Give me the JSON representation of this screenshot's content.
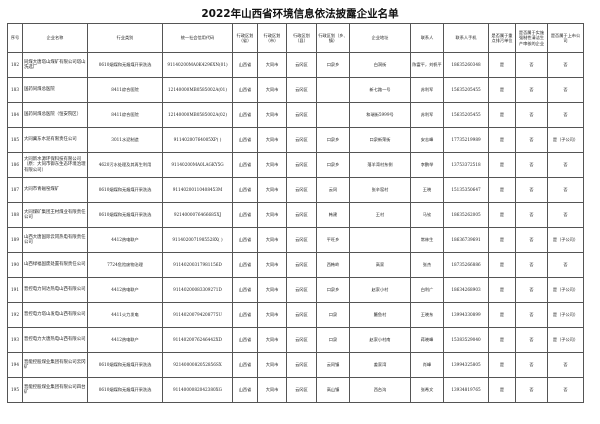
{
  "title": "2022年山西省环境信息依法披露企业名单",
  "headers": [
    "序号",
    "企业名称",
    "行业类别",
    "统一社会信用代码",
    "行政区划（省）",
    "行政区划（市）",
    "行政区划（县）",
    "行政区划（乡、镇）",
    "企业地址",
    "联系人",
    "联系人手机",
    "是否属于重点排污单位",
    "是否属于实施强制性清洁生产审核的企业",
    "是否属于上市公司"
  ],
  "rows": [
    {
      "no": "182",
      "name": "同煤大唐塔山煤矿有限公司塔山洗选厂",
      "industry": "0610烟煤和无烟煤开采洗选",
      "code": "91140200MA0K4296XN(01)",
      "prov": "山西省",
      "city": "大同市",
      "county": "云冈区",
      "town": "口泉乡",
      "address": "白洞街",
      "contact": "陈富平，刘帆平",
      "phone": "18635260348",
      "key": "是",
      "clean": "否",
      "listed": "否"
    },
    {
      "no": "183",
      "name": "国药同煤总医院",
      "industry": "8411综合医院",
      "code": "12140000MB0585002A(01)",
      "prov": "山西省",
      "city": "大同市",
      "county": "云冈区",
      "town": "",
      "address": "新七路一号",
      "contact": "苏利军",
      "phone": "15635205455",
      "key": "是",
      "clean": "否",
      "listed": "否"
    },
    {
      "no": "184",
      "name": "国药同煤总医院（恒安院区）",
      "industry": "8411综合医院",
      "code": "12140000MB0585002A(02)",
      "prov": "山西省",
      "city": "大同市",
      "county": "云冈区",
      "town": "",
      "address": "和瑞街5999号",
      "contact": "苏利军",
      "phone": "15635205455",
      "key": "是",
      "clean": "否",
      "listed": "否"
    },
    {
      "no": "185",
      "name": "大同冀东水泥有限责任公司",
      "industry": "3011水泥制造",
      "code": "91140200764005XP(  )",
      "prov": "山西省",
      "city": "大同市",
      "county": "云冈区",
      "town": "口泉乡",
      "address": "口泉新荣街",
      "contact": "安志峰",
      "phone": "17735219989",
      "key": "是",
      "clean": "否",
      "listed": "是（子公司）"
    },
    {
      "no": "186",
      "name": "大同新水源环保科技有限公司（原：大同市御东生态环境治理有限公司）",
      "industry": "4620污水处理及其再生利用",
      "code": "91140200MA0LAGKY5G",
      "prov": "山西省",
      "city": "大同市",
      "county": "云冈区",
      "town": "口泉乡",
      "address": "落羊湾村东侧",
      "contact": "李鹏举",
      "phone": "13753372518",
      "key": "是",
      "clean": "否",
      "listed": "否"
    },
    {
      "no": "187",
      "name": "大同市青磁窑煤矿",
      "industry": "0610烟煤和无烟煤开采洗选",
      "code": "91140200110408453M",
      "prov": "山西省",
      "city": "大同市",
      "county": "云冈区",
      "town": "云冈",
      "address": "张辛窑村",
      "contact": "王晓",
      "phone": "15135350647",
      "key": "是",
      "clean": "否",
      "listed": "否"
    },
    {
      "no": "188",
      "name": "大同煤矿集团王村煤业有限责任公司",
      "industry": "0610烟煤和无烟煤开采洗选",
      "code": "9214000076466685XJ",
      "prov": "山西省",
      "city": "大同市",
      "county": "云冈区",
      "town": "韩建",
      "address": "王村",
      "contact": "马钦",
      "phone": "18635262005",
      "key": "是",
      "clean": "否",
      "listed": "否"
    },
    {
      "no": "189",
      "name": "山西大唐国际云冈热电有限责任公司",
      "industry": "4412热电联产",
      "code": "9114020071985528X(  )",
      "prov": "山西省",
      "city": "大同市",
      "county": "云冈区",
      "town": "平旺乡",
      "address": "",
      "contact": "常林生",
      "phone": "18636739691",
      "key": "是",
      "clean": "否",
      "listed": "是（子公司）"
    },
    {
      "no": "190",
      "name": "山西绿福固废处置有限责任公司",
      "industry": "7724危险废物治理",
      "code": "91140200317981156D",
      "prov": "山西省",
      "city": "大同市",
      "county": "云冈区",
      "town": "西韩岭",
      "address": "高家",
      "contact": "张杰",
      "phone": "18735266886",
      "key": "是",
      "clean": "否",
      "listed": "否"
    },
    {
      "no": "191",
      "name": "晋控电力同达热电山西有限公司",
      "industry": "4412热电联产",
      "code": "91140200083309271D",
      "prov": "山西省",
      "city": "大同市",
      "county": "云冈区",
      "town": "口泉乡",
      "address": "赵家小村",
      "contact": "白利广",
      "phone": "18634268903",
      "key": "是",
      "clean": "否",
      "listed": "是（子公司）"
    },
    {
      "no": "192",
      "name": "晋控电力塔山发电山西有限公司",
      "industry": "4411火力发电",
      "code": "91140200794208775U",
      "prov": "山西省",
      "city": "大同市",
      "county": "云冈区",
      "town": "口泉",
      "address": "鳌鱼村",
      "contact": "王晓东",
      "phone": "13994330899",
      "key": "是",
      "clean": "否",
      "listed": "是（子公司）"
    },
    {
      "no": "193",
      "name": "晋控电力大唐热电山西有限公司",
      "industry": "4412热电联产",
      "code": "9114020076246442XD",
      "prov": "山西省",
      "city": "大同市",
      "county": "云冈区",
      "town": "口泉",
      "address": "赵家小村南",
      "contact": "蒋晓峰",
      "phone": "15383529040",
      "key": "是",
      "clean": "否",
      "listed": "是（子公司）"
    },
    {
      "no": "194",
      "name": "晋能控股煤业集团有限公司云冈矿",
      "industry": "0610烟煤和无烟煤开采洗选",
      "code": "9214000082052856SX",
      "prov": "山西省",
      "city": "大同市",
      "county": "云冈区",
      "town": "云冈镇",
      "address": "姜家湾",
      "contact": "肖峰",
      "phone": "13994325805",
      "key": "是",
      "clean": "否",
      "listed": "否"
    },
    {
      "no": "195",
      "name": "晋能控股煤业集团有限公司四台矿",
      "industry": "0610烟煤和无烟煤开采洗选",
      "code": "9114000082042380XG",
      "prov": "山西省",
      "city": "大同市",
      "county": "云冈区",
      "town": "高山镇",
      "address": "西台沟",
      "contact": "张希文",
      "phone": "13934819765",
      "key": "是",
      "clean": "否",
      "listed": "否"
    }
  ]
}
